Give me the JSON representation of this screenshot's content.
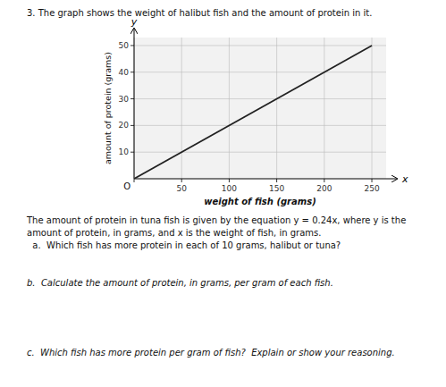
{
  "chart_data": {
    "type": "line",
    "title": "3.  The graph shows the weight of halibut fish and the amount of protein in it.",
    "x_label": "weight of fish (grams)",
    "y_label": "amount of protein (grams)",
    "x": [
      0,
      250
    ],
    "values": [
      0,
      50
    ],
    "color": "#222222",
    "xlim": [
      0,
      265
    ],
    "ylim": [
      0,
      53
    ],
    "xticks": [
      {
        "value": 0,
        "label": "O"
      },
      50,
      100,
      150,
      200,
      250
    ],
    "yticks": [
      10,
      20,
      30,
      40,
      50
    ],
    "grid": true,
    "annotations": [
      "y",
      "x",
      "The amount of protein in tuna fish is given by the equation y = 0.24x, where y is the",
      "amount of protein, in grams, and x is the weight of fish, in grams.",
      "  a.  Which fish has more protein in each of 10 grams, halibut or tuna?",
      "b.  Calculate the amount of protein, in grams, per gram of each fish.",
      "c.  Which fish has more protein per gram of fish?  Explain or show your reasoning."
    ]
  }
}
